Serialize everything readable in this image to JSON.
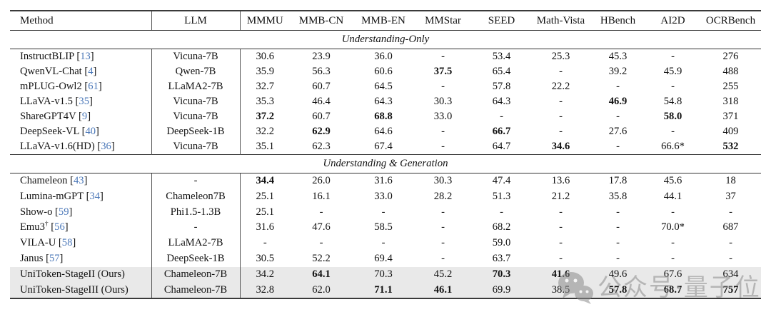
{
  "colors": {
    "citation_link": "#4a77b8",
    "highlight_row": "#e9e9e9",
    "table_rule": "#3a3a3a",
    "watermark": "#8c8c8c"
  },
  "watermark": {
    "icon": "wechat-icon",
    "text": "公众号·量子位"
  },
  "table": {
    "columns": [
      "Method",
      "LLM",
      "MMMU",
      "MMB-CN",
      "MMB-EN",
      "MMStar",
      "SEED",
      "Math-Vista",
      "HBench",
      "AI2D",
      "OCRBench"
    ],
    "sections": [
      {
        "title": "Understanding-Only",
        "rows": [
          {
            "method": "InstructBLIP",
            "cite": "13",
            "llm": "Vicuna-7B",
            "v": [
              "30.6",
              "23.9",
              "36.0",
              "-",
              "53.4",
              "25.3",
              "45.3",
              "-",
              "276"
            ],
            "b": [],
            "hl": false
          },
          {
            "method": "QwenVL-Chat",
            "cite": "4",
            "llm": "Qwen-7B",
            "v": [
              "35.9",
              "56.3",
              "60.6",
              "37.5",
              "65.4",
              "-",
              "39.2",
              "45.9",
              "488"
            ],
            "b": [
              3
            ],
            "hl": false
          },
          {
            "method": "mPLUG-Owl2",
            "cite": "61",
            "llm": "LLaMA2-7B",
            "v": [
              "32.7",
              "60.7",
              "64.5",
              "-",
              "57.8",
              "22.2",
              "-",
              "-",
              "255"
            ],
            "b": [],
            "hl": false
          },
          {
            "method": "LLaVA-v1.5",
            "cite": "35",
            "llm": "Vicuna-7B",
            "v": [
              "35.3",
              "46.4",
              "64.3",
              "30.3",
              "64.3",
              "-",
              "46.9",
              "54.8",
              "318"
            ],
            "b": [
              6
            ],
            "hl": false
          },
          {
            "method": "ShareGPT4V",
            "cite": "9",
            "llm": "Vicuna-7B",
            "v": [
              "37.2",
              "60.7",
              "68.8",
              "33.0",
              "-",
              "-",
              "-",
              "58.0",
              "371"
            ],
            "b": [
              0,
              2,
              7
            ],
            "hl": false
          },
          {
            "method": "DeepSeek-VL",
            "cite": "40",
            "llm": "DeepSeek-1B",
            "v": [
              "32.2",
              "62.9",
              "64.6",
              "-",
              "66.7",
              "-",
              "27.6",
              "-",
              "409"
            ],
            "b": [
              1,
              4
            ],
            "hl": false
          },
          {
            "method": "LLaVA-v1.6(HD)",
            "cite": "36",
            "llm": "Vicuna-7B",
            "v": [
              "35.1",
              "62.3",
              "67.4",
              "-",
              "64.7",
              "34.6",
              "-",
              "66.6*",
              "532"
            ],
            "b": [
              5,
              8
            ],
            "hl": false
          }
        ]
      },
      {
        "title": "Understanding & Generation",
        "rows": [
          {
            "method": "Chameleon",
            "cite": "43",
            "llm": "-",
            "v": [
              "34.4",
              "26.0",
              "31.6",
              "30.3",
              "47.4",
              "13.6",
              "17.8",
              "45.6",
              "18"
            ],
            "b": [
              0
            ],
            "hl": false
          },
          {
            "method": "Lumina-mGPT",
            "cite": "34",
            "llm": "Chameleon7B",
            "v": [
              "25.1",
              "16.1",
              "33.0",
              "28.2",
              "51.3",
              "21.2",
              "35.8",
              "44.1",
              "37"
            ],
            "b": [],
            "hl": false
          },
          {
            "method": "Show-o",
            "cite": "59",
            "llm": "Phi1.5-1.3B",
            "v": [
              "25.1",
              "-",
              "-",
              "-",
              "-",
              "-",
              "-",
              "-",
              "-"
            ],
            "b": [],
            "hl": false
          },
          {
            "method": "Emu3",
            "sup": "†",
            "cite": "56",
            "llm": "-",
            "v": [
              "31.6",
              "47.6",
              "58.5",
              "-",
              "68.2",
              "-",
              "-",
              "70.0*",
              "687"
            ],
            "b": [],
            "hl": false
          },
          {
            "method": "VILA-U",
            "cite": "58",
            "llm": "LLaMA2-7B",
            "v": [
              "-",
              "-",
              "-",
              "-",
              "59.0",
              "-",
              "-",
              "-",
              "-"
            ],
            "b": [],
            "hl": false
          },
          {
            "method": "Janus",
            "cite": "57",
            "llm": "DeepSeek-1B",
            "v": [
              "30.5",
              "52.2",
              "69.4",
              "-",
              "63.7",
              "-",
              "-",
              "-",
              "-"
            ],
            "b": [],
            "hl": false
          },
          {
            "method": "UniToken-StageII (Ours)",
            "llm": "Chameleon-7B",
            "v": [
              "34.2",
              "64.1",
              "70.3",
              "45.2",
              "70.3",
              "41.6",
              "49.6",
              "67.6",
              "634"
            ],
            "b": [
              1,
              4,
              5
            ],
            "hl": true
          },
          {
            "method": "UniToken-StageIII (Ours)",
            "llm": "Chameleon-7B",
            "v": [
              "32.8",
              "62.0",
              "71.1",
              "46.1",
              "69.9",
              "38.5",
              "57.8",
              "68.7",
              "757"
            ],
            "b": [
              2,
              3,
              6,
              7,
              8
            ],
            "hl": true
          }
        ]
      }
    ]
  }
}
